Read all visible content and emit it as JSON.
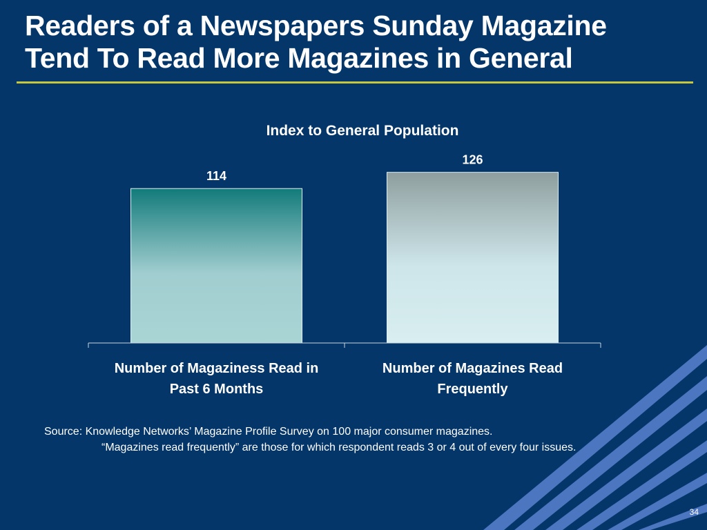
{
  "slide": {
    "title_line1": "Readers of a Newspapers Sunday Magazine",
    "title_line2": "Tend To Read More Magazines in General",
    "source_line1": "Source:  Knowledge Networks’ Magazine Profile Survey on 100 major consumer magazines.",
    "source_line2": "“Magazines read frequently” are those for which respondent reads 3 or 4 out of every four issues.",
    "page_number": "34"
  },
  "chart_data": {
    "type": "bar",
    "title": "Index to General Population",
    "categories": [
      [
        "Number of Magaziness Read in",
        "Past 6 Months"
      ],
      [
        "Number of Magazines Read",
        "Frequently"
      ]
    ],
    "values": [
      114,
      126
    ],
    "data_labels": [
      "114",
      "126"
    ],
    "ylim": [
      0,
      135
    ],
    "grid": false,
    "legend": "none",
    "colors": {
      "bar1_top": "#127a7a",
      "bar1_bottom": "#a9d5d5",
      "bar2_top": "#8e9e9e",
      "bar2_bottom": "#d8eef0"
    }
  }
}
